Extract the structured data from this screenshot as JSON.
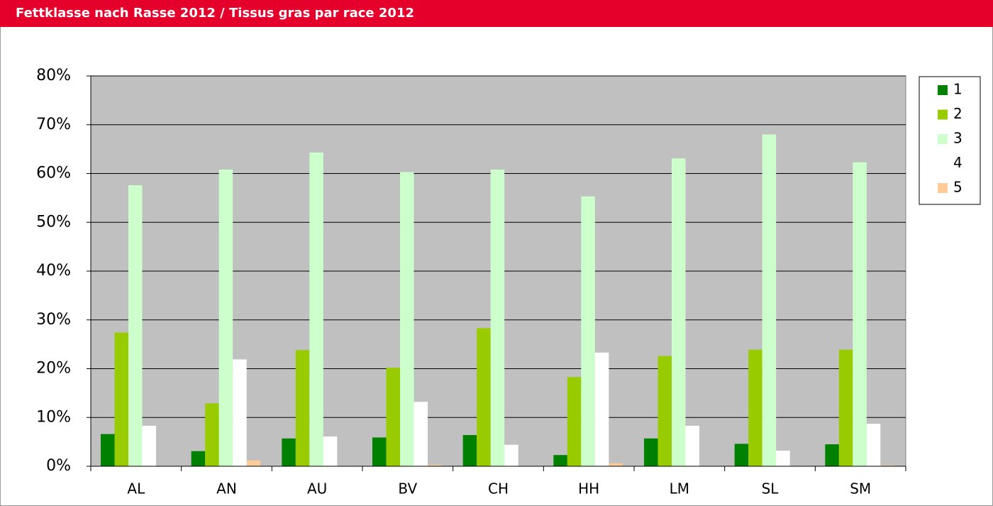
{
  "chart_data": {
    "type": "bar",
    "title": "Fettklasse nach Rasse 2012 / Tissus gras par race 2012",
    "categories": [
      "AL",
      "AN",
      "AU",
      "BV",
      "CH",
      "HH",
      "LM",
      "SL",
      "SM"
    ],
    "series": [
      {
        "name": "1",
        "color": "#008000",
        "values": [
          6.6,
          3.1,
          5.7,
          5.9,
          6.4,
          2.3,
          5.7,
          4.6,
          4.5
        ]
      },
      {
        "name": "2",
        "color": "#99cc00",
        "values": [
          27.4,
          12.9,
          23.8,
          20.2,
          28.3,
          18.3,
          22.6,
          23.9,
          23.9
        ]
      },
      {
        "name": "3",
        "color": "#ccffcc",
        "values": [
          57.6,
          60.8,
          64.3,
          60.3,
          60.8,
          55.3,
          63.1,
          68.0,
          62.3
        ]
      },
      {
        "name": "4",
        "color": "#ffffff",
        "values": [
          8.3,
          21.9,
          6.1,
          13.2,
          4.4,
          23.3,
          8.3,
          3.2,
          8.7
        ]
      },
      {
        "name": "5",
        "color": "#ffcc99",
        "values": [
          0,
          1.2,
          0,
          0.3,
          0,
          0.6,
          0,
          0,
          0.2
        ]
      }
    ],
    "ylim": [
      0,
      80
    ],
    "yticks": [
      {
        "value": 0,
        "label": "0%"
      },
      {
        "value": 10,
        "label": "10%"
      },
      {
        "value": 20,
        "label": "20%"
      },
      {
        "value": 30,
        "label": "30%"
      },
      {
        "value": 40,
        "label": "40%"
      },
      {
        "value": 50,
        "label": "50%"
      },
      {
        "value": 60,
        "label": "60%"
      },
      {
        "value": 70,
        "label": "70%"
      },
      {
        "value": 80,
        "label": "80%"
      }
    ],
    "grid": true,
    "legend": "right",
    "plot_background": "#c0c0c0"
  }
}
